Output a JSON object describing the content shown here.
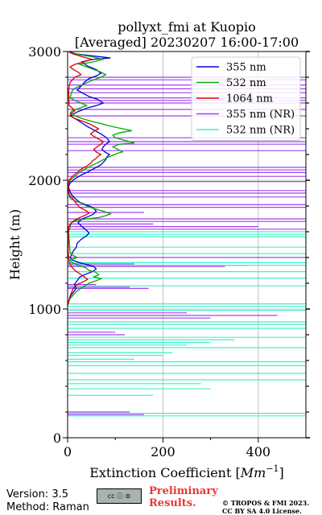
{
  "chart_data": {
    "type": "line",
    "title": "pollyxt_fmi at Kuopio",
    "subtitle": "[Averaged] 20230207 16:00-17:00",
    "xlabel": "Extinction Coefficient [",
    "xlabel_unit": "Mm",
    "xlabel_exp": "−1",
    "xlabel_close": "]",
    "ylabel": "Height (m)",
    "xlim": [
      0,
      500
    ],
    "ylim": [
      0,
      3000
    ],
    "x_ticks": [
      0,
      200,
      400
    ],
    "y_ticks": [
      0,
      1000,
      2000,
      3000
    ],
    "grid": true,
    "legend_position": "top-right",
    "series": [
      {
        "name": "355 nm",
        "color": "#0000dd",
        "points": [
          [
            0,
            1030
          ],
          [
            2,
            1060
          ],
          [
            6,
            1100
          ],
          [
            12,
            1130
          ],
          [
            18,
            1160
          ],
          [
            14,
            1190
          ],
          [
            20,
            1220
          ],
          [
            26,
            1250
          ],
          [
            38,
            1270
          ],
          [
            52,
            1290
          ],
          [
            60,
            1310
          ],
          [
            55,
            1330
          ],
          [
            40,
            1345
          ],
          [
            25,
            1360
          ],
          [
            10,
            1380
          ],
          [
            5,
            1400
          ],
          [
            8,
            1420
          ],
          [
            12,
            1450
          ],
          [
            18,
            1480
          ],
          [
            20,
            1510
          ],
          [
            28,
            1540
          ],
          [
            40,
            1570
          ],
          [
            45,
            1590
          ],
          [
            40,
            1610
          ],
          [
            30,
            1640
          ],
          [
            22,
            1670
          ],
          [
            30,
            1700
          ],
          [
            45,
            1720
          ],
          [
            55,
            1740
          ],
          [
            60,
            1760
          ],
          [
            52,
            1790
          ],
          [
            38,
            1810
          ],
          [
            25,
            1830
          ],
          [
            15,
            1860
          ],
          [
            8,
            1890
          ],
          [
            4,
            1920
          ],
          [
            2,
            1950
          ],
          [
            5,
            1980
          ],
          [
            15,
            2010
          ],
          [
            28,
            2040
          ],
          [
            40,
            2060
          ],
          [
            50,
            2080
          ],
          [
            60,
            2100
          ],
          [
            70,
            2120
          ],
          [
            75,
            2140
          ],
          [
            80,
            2160
          ],
          [
            82,
            2180
          ],
          [
            88,
            2200
          ],
          [
            78,
            2220
          ],
          [
            72,
            2240
          ],
          [
            75,
            2260
          ],
          [
            80,
            2280
          ],
          [
            88,
            2300
          ],
          [
            82,
            2330
          ],
          [
            70,
            2360
          ],
          [
            55,
            2390
          ],
          [
            40,
            2420
          ],
          [
            28,
            2450
          ],
          [
            15,
            2480
          ],
          [
            5,
            2500
          ],
          [
            20,
            2530
          ],
          [
            40,
            2560
          ],
          [
            60,
            2580
          ],
          [
            75,
            2600
          ],
          [
            62,
            2630
          ],
          [
            45,
            2650
          ],
          [
            30,
            2680
          ],
          [
            20,
            2700
          ],
          [
            28,
            2730
          ],
          [
            35,
            2760
          ],
          [
            45,
            2790
          ],
          [
            60,
            2810
          ],
          [
            70,
            2830
          ],
          [
            60,
            2860
          ],
          [
            40,
            2890
          ],
          [
            30,
            2920
          ],
          [
            55,
            2940
          ],
          [
            90,
            2950
          ],
          [
            55,
            2965
          ],
          [
            20,
            2980
          ],
          [
            5,
            2995
          ]
        ]
      },
      {
        "name": "532 nm",
        "color": "#00aa00",
        "points": [
          [
            0,
            1030
          ],
          [
            5,
            1080
          ],
          [
            12,
            1110
          ],
          [
            20,
            1140
          ],
          [
            32,
            1170
          ],
          [
            45,
            1200
          ],
          [
            60,
            1220
          ],
          [
            70,
            1235
          ],
          [
            55,
            1250
          ],
          [
            65,
            1265
          ],
          [
            60,
            1285
          ],
          [
            45,
            1300
          ],
          [
            38,
            1320
          ],
          [
            22,
            1340
          ],
          [
            10,
            1360
          ],
          [
            5,
            1380
          ],
          [
            20,
            1400
          ],
          [
            10,
            1420
          ],
          [
            5,
            1440
          ],
          [
            2,
            1600
          ],
          [
            8,
            1670
          ],
          [
            20,
            1690
          ],
          [
            40,
            1700
          ],
          [
            65,
            1710
          ],
          [
            80,
            1725
          ],
          [
            90,
            1740
          ],
          [
            75,
            1760
          ],
          [
            55,
            1780
          ],
          [
            40,
            1800
          ],
          [
            30,
            1820
          ],
          [
            15,
            1840
          ],
          [
            5,
            1860
          ],
          [
            2,
            1900
          ],
          [
            0,
            1960
          ],
          [
            5,
            2000
          ],
          [
            15,
            2030
          ],
          [
            25,
            2060
          ],
          [
            38,
            2090
          ],
          [
            48,
            2110
          ],
          [
            60,
            2130
          ],
          [
            70,
            2150
          ],
          [
            80,
            2170
          ],
          [
            92,
            2190
          ],
          [
            105,
            2210
          ],
          [
            115,
            2220
          ],
          [
            105,
            2240
          ],
          [
            95,
            2260
          ],
          [
            110,
            2280
          ],
          [
            140,
            2290
          ],
          [
            120,
            2310
          ],
          [
            100,
            2330
          ],
          [
            95,
            2350
          ],
          [
            110,
            2370
          ],
          [
            135,
            2385
          ],
          [
            115,
            2400
          ],
          [
            90,
            2420
          ],
          [
            70,
            2440
          ],
          [
            48,
            2460
          ],
          [
            30,
            2480
          ],
          [
            15,
            2500
          ],
          [
            5,
            2520
          ],
          [
            10,
            2540
          ],
          [
            25,
            2560
          ],
          [
            40,
            2580
          ],
          [
            28,
            2600
          ],
          [
            15,
            2620
          ],
          [
            5,
            2640
          ],
          [
            10,
            2700
          ],
          [
            18,
            2720
          ],
          [
            30,
            2740
          ],
          [
            42,
            2760
          ],
          [
            55,
            2780
          ],
          [
            70,
            2800
          ],
          [
            80,
            2820
          ],
          [
            70,
            2840
          ],
          [
            55,
            2860
          ],
          [
            40,
            2880
          ],
          [
            25,
            2900
          ],
          [
            55,
            2920
          ],
          [
            75,
            2940
          ],
          [
            50,
            2960
          ],
          [
            25,
            2975
          ],
          [
            5,
            2990
          ]
        ]
      },
      {
        "name": "1064 nm",
        "color": "#dd0000",
        "points": [
          [
            0,
            1030
          ],
          [
            5,
            1100
          ],
          [
            12,
            1160
          ],
          [
            20,
            1190
          ],
          [
            35,
            1215
          ],
          [
            42,
            1230
          ],
          [
            35,
            1250
          ],
          [
            25,
            1275
          ],
          [
            15,
            1300
          ],
          [
            8,
            1330
          ],
          [
            3,
            1370
          ],
          [
            1,
            1450
          ],
          [
            2,
            1640
          ],
          [
            8,
            1670
          ],
          [
            15,
            1690
          ],
          [
            25,
            1710
          ],
          [
            38,
            1730
          ],
          [
            45,
            1745
          ],
          [
            38,
            1765
          ],
          [
            25,
            1790
          ],
          [
            18,
            1820
          ],
          [
            12,
            1850
          ],
          [
            8,
            1870
          ],
          [
            3,
            1890
          ],
          [
            1,
            1950
          ],
          [
            3,
            2000
          ],
          [
            10,
            2030
          ],
          [
            20,
            2060
          ],
          [
            30,
            2090
          ],
          [
            40,
            2110
          ],
          [
            48,
            2130
          ],
          [
            52,
            2150
          ],
          [
            60,
            2170
          ],
          [
            65,
            2190
          ],
          [
            70,
            2200
          ],
          [
            60,
            2220
          ],
          [
            55,
            2240
          ],
          [
            62,
            2260
          ],
          [
            70,
            2280
          ],
          [
            75,
            2300
          ],
          [
            65,
            2320
          ],
          [
            55,
            2340
          ],
          [
            48,
            2360
          ],
          [
            55,
            2380
          ],
          [
            65,
            2400
          ],
          [
            55,
            2420
          ],
          [
            45,
            2440
          ],
          [
            30,
            2460
          ],
          [
            15,
            2480
          ],
          [
            5,
            2500
          ],
          [
            8,
            2520
          ],
          [
            15,
            2540
          ],
          [
            10,
            2560
          ],
          [
            3,
            2580
          ],
          [
            2,
            2700
          ],
          [
            5,
            2760
          ],
          [
            15,
            2800
          ],
          [
            28,
            2820
          ],
          [
            22,
            2840
          ],
          [
            12,
            2860
          ],
          [
            5,
            2880
          ],
          [
            15,
            2900
          ],
          [
            35,
            2920
          ],
          [
            50,
            2940
          ],
          [
            30,
            2960
          ],
          [
            12,
            2980
          ],
          [
            3,
            2995
          ]
        ]
      },
      {
        "name": "355 nm (NR)",
        "color": "#a040f0",
        "spikes": [
          [
            1160,
            170
          ],
          [
            1170,
            130
          ],
          [
            1190,
            60
          ],
          [
            1330,
            330
          ],
          [
            1340,
            380
          ],
          [
            1350,
            140
          ],
          [
            1400,
            500
          ],
          [
            1620,
            500
          ],
          [
            1640,
            400
          ],
          [
            1660,
            180
          ],
          [
            1680,
            500
          ],
          [
            1700,
            500
          ],
          [
            1750,
            160
          ],
          [
            1790,
            500
          ],
          [
            1810,
            500
          ],
          [
            1870,
            500
          ],
          [
            1900,
            500
          ],
          [
            1920,
            500
          ],
          [
            1990,
            500
          ],
          [
            2030,
            500
          ],
          [
            2060,
            500
          ],
          [
            2080,
            500
          ],
          [
            2100,
            500
          ],
          [
            2230,
            500
          ],
          [
            2280,
            500
          ],
          [
            2300,
            500
          ],
          [
            2330,
            500
          ],
          [
            2500,
            500
          ],
          [
            2550,
            500
          ],
          [
            2600,
            500
          ],
          [
            2620,
            500
          ],
          [
            2640,
            500
          ],
          [
            2680,
            500
          ],
          [
            2710,
            500
          ],
          [
            2740,
            500
          ],
          [
            2780,
            500
          ],
          [
            2800,
            500
          ],
          [
            930,
            300
          ],
          [
            950,
            440
          ],
          [
            970,
            250
          ],
          [
            800,
            120
          ],
          [
            820,
            100
          ],
          [
            180,
            160
          ],
          [
            200,
            130
          ]
        ]
      },
      {
        "name": "532 nm (NR)",
        "color": "#40f0c8",
        "spikes": [
          [
            1180,
            500
          ],
          [
            1240,
            500
          ],
          [
            1290,
            500
          ],
          [
            1340,
            500
          ],
          [
            1360,
            500
          ],
          [
            1430,
            500
          ],
          [
            1480,
            500
          ],
          [
            1560,
            500
          ],
          [
            1580,
            500
          ],
          [
            1600,
            500
          ],
          [
            1020,
            500
          ],
          [
            1040,
            500
          ],
          [
            990,
            500
          ],
          [
            900,
            500
          ],
          [
            880,
            500
          ],
          [
            850,
            500
          ],
          [
            780,
            500
          ],
          [
            760,
            350
          ],
          [
            740,
            300
          ],
          [
            720,
            250
          ],
          [
            700,
            500
          ],
          [
            660,
            220
          ],
          [
            640,
            200
          ],
          [
            610,
            140
          ],
          [
            590,
            500
          ],
          [
            560,
            500
          ],
          [
            500,
            500
          ],
          [
            450,
            500
          ],
          [
            420,
            280
          ],
          [
            380,
            300
          ],
          [
            330,
            180
          ],
          [
            190,
            500
          ],
          [
            170,
            500
          ]
        ]
      }
    ]
  },
  "footer": {
    "version": "Version: 3.5",
    "method": "Method: Raman",
    "cc_badge": "cc ⓘ ⊜",
    "prelim_line1": "Preliminary",
    "prelim_line2": "Results.",
    "copyright_line1": "© TROPOS & FMI 2023.",
    "copyright_line2": "CC BY SA 4.0 License."
  }
}
